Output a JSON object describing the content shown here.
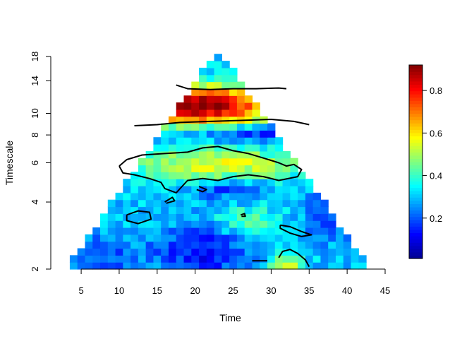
{
  "chart_data": {
    "type": "heatmap",
    "subtype": "wavelet power spectrum (cone of influence)",
    "xlabel": "Time",
    "ylabel": "Timescale",
    "xlim": [
      1,
      45
    ],
    "x_ticks": [
      5,
      10,
      15,
      20,
      25,
      30,
      35,
      40,
      45
    ],
    "ylim": [
      2,
      18
    ],
    "y_scale": "log",
    "y_ticks": [
      2,
      4,
      6,
      8,
      10,
      14,
      18
    ],
    "colorbar": {
      "range": [
        0.01,
        0.92
      ],
      "ticks": [
        0.2,
        0.4,
        0.6,
        0.8
      ],
      "colors": [
        "#00008f",
        "#0000ff",
        "#0080ff",
        "#00ffff",
        "#80ff80",
        "#ffff00",
        "#ff8000",
        "#ff0000",
        "#800000"
      ]
    },
    "contour_level": 0.6,
    "annotations": "Black contour lines enclose regions of high power (significant areas)"
  }
}
